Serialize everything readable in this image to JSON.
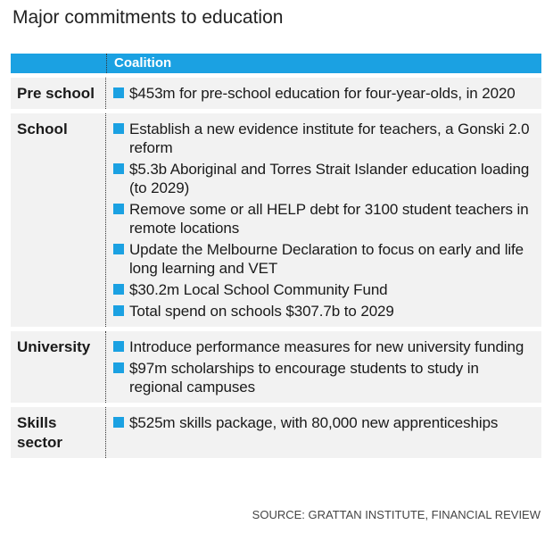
{
  "title": "Major commitments to education",
  "table": {
    "header": "Coalition",
    "rows": [
      {
        "label": "Pre school",
        "items": [
          "$453m for pre-school education for four-year-olds, in 2020"
        ]
      },
      {
        "label": "School",
        "items": [
          "Establish a new evidence institute for teachers, a Gonski 2.0 reform",
          "$5.3b Aboriginal and Torres Strait Islander education loading (to 2029)",
          "Remove some or all HELP debt for 3100 student teachers in remote locations",
          "Update the Melbourne Declaration to focus on early and life long learning and VET",
          "$30.2m Local School Community Fund",
          "Total spend on schools $307.7b to 2029"
        ]
      },
      {
        "label": "University",
        "items": [
          "Introduce performance measures for new university funding",
          "$97m scholarships to encourage students to study in regional campuses"
        ]
      },
      {
        "label": "Skills sector",
        "items": [
          "$525m skills package, with 80,000 new apprenticeships"
        ]
      }
    ]
  },
  "source": "SOURCE: GRATTAN INSTITUTE, FINANCIAL REVIEW"
}
